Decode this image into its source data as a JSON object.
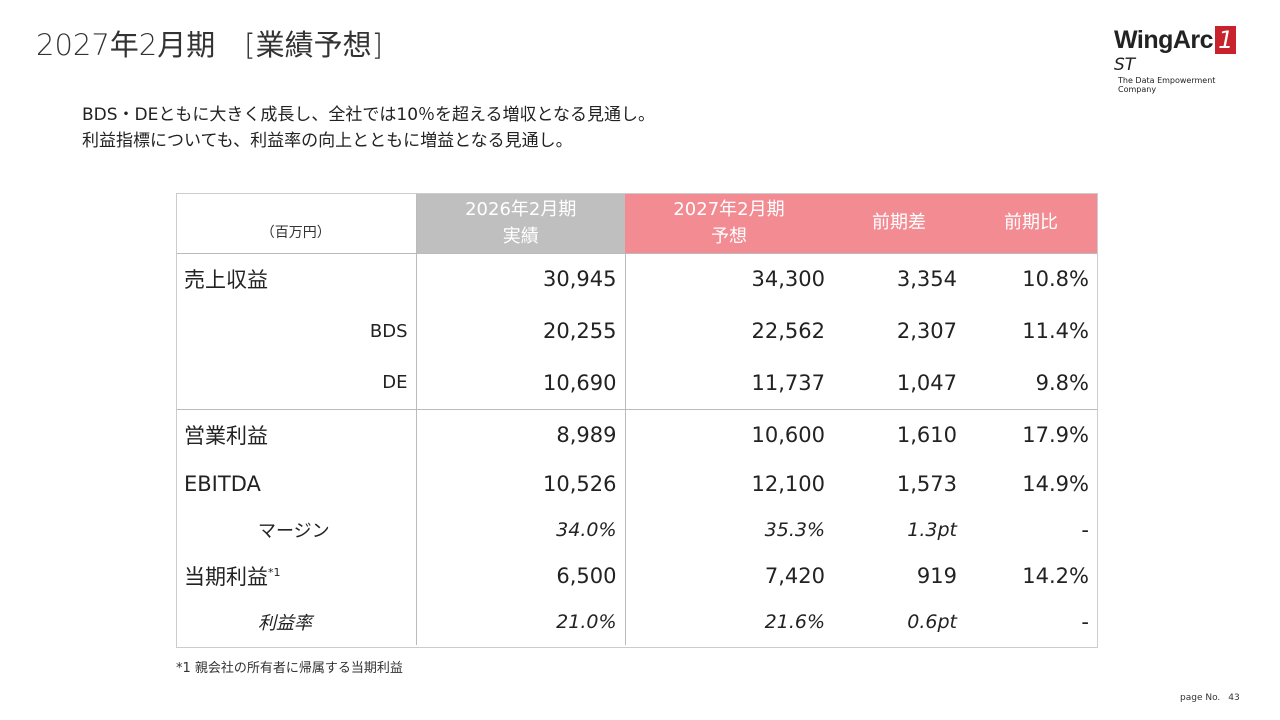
{
  "title": "2027年2月期　[業績予想]",
  "logo": {
    "brand": "WingArc",
    "one": "1",
    "st": "ST",
    "tagline": "The Data Empowerment Company"
  },
  "lead": [
    "BDS・DEともに大きく成長し、全社では10％を超える増収となる見通し。",
    "利益指標についても、利益率の向上とともに増益となる見通し。"
  ],
  "table": {
    "unit": "（百万円）",
    "headers": {
      "prev_year": "2026年2月期",
      "prev_type": "実績",
      "next_year": "2027年2月期",
      "next_type": "予想",
      "diff": "前期差",
      "ratio": "前期比"
    },
    "rows": [
      {
        "label": "売上収益",
        "v": [
          "30,945",
          "34,300",
          "3,354",
          "10.8%"
        ]
      },
      {
        "label": "BDS",
        "v": [
          "20,255",
          "22,562",
          "2,307",
          "11.4%"
        ]
      },
      {
        "label": "DE",
        "v": [
          "10,690",
          "11,737",
          "1,047",
          "9.8%"
        ]
      },
      {
        "label": "営業利益",
        "v": [
          "8,989",
          "10,600",
          "1,610",
          "17.9%"
        ]
      },
      {
        "label": "EBITDA",
        "v": [
          "10,526",
          "12,100",
          "1,573",
          "14.9%"
        ]
      },
      {
        "label": "マージン",
        "v": [
          "34.0%",
          "35.3%",
          "1.3pt",
          "-"
        ]
      },
      {
        "label": "当期利益",
        "sup": "*1",
        "v": [
          "6,500",
          "7,420",
          "919",
          "14.2%"
        ]
      },
      {
        "label": "利益率",
        "v": [
          "21.0%",
          "21.6%",
          "0.6pt",
          "-"
        ]
      }
    ]
  },
  "footnote": "*1 親会社の所有者に帰属する当期利益",
  "page": {
    "label": "page No.",
    "number": "43"
  },
  "colors": {
    "gray": "#bfbfbf",
    "pink": "#f28b92",
    "logo_red": "#c8232c"
  }
}
